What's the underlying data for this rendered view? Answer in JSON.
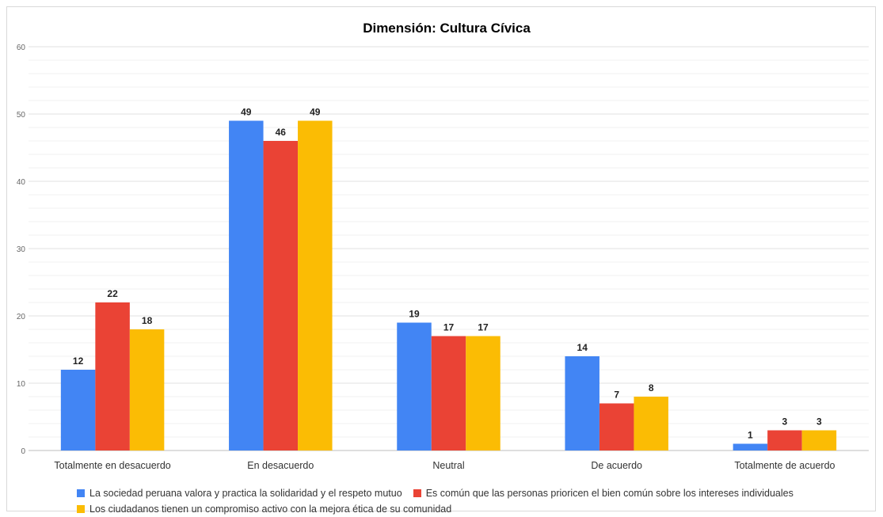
{
  "chart_data": {
    "type": "bar",
    "title": "Dimensión: Cultura Cívica",
    "categories": [
      "Totalmente en desacuerdo",
      "En desacuerdo",
      "Neutral",
      "De acuerdo",
      "Totalmente de acuerdo"
    ],
    "series": [
      {
        "name": "La sociedad peruana valora y practica la solidaridad y el respeto mutuo",
        "values": [
          12,
          49,
          19,
          14,
          1
        ],
        "color": "#4285F4"
      },
      {
        "name": "Es común que las personas prioricen el bien común sobre los intereses individuales",
        "values": [
          22,
          46,
          17,
          7,
          3
        ],
        "color": "#EA4335"
      },
      {
        "name": "Los ciudadanos tienen un compromiso activo con la mejora ética de su comunidad",
        "values": [
          18,
          49,
          17,
          8,
          3
        ],
        "color": "#FBBC04"
      }
    ],
    "ylim": [
      0,
      60
    ],
    "yticks": [
      0,
      10,
      20,
      30,
      40,
      50,
      60
    ],
    "grid": true,
    "data_labels": true,
    "legend_position": "bottom"
  }
}
